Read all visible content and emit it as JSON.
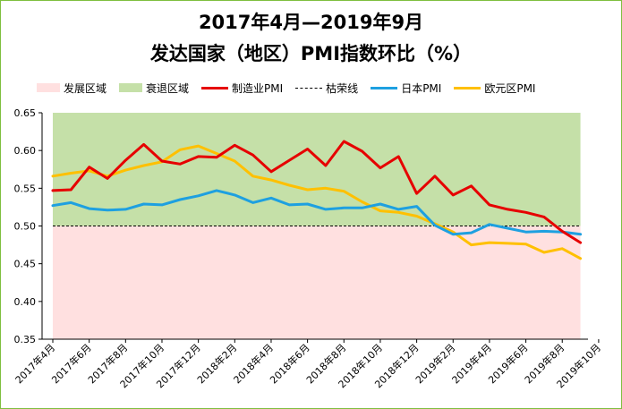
{
  "chart_data": {
    "type": "line",
    "title": "2017年4月—2019年9月",
    "subtitle": "发达国家（地区）PMI指数环比（%）",
    "xlabel": "",
    "ylabel": "",
    "ylim": [
      0.35,
      0.65
    ],
    "yticks": [
      "0.35",
      "0.40",
      "0.45",
      "0.50",
      "0.55",
      "0.60",
      "0.65"
    ],
    "grid": false,
    "legend_position": "top",
    "x_tick_labels": [
      "2017年4月",
      "2017年6月",
      "2017年8月",
      "2017年10月",
      "2017年12月",
      "2018年2月",
      "2018年4月",
      "2018年6月",
      "2018年8月",
      "2018年10月",
      "2018年12月",
      "2019年2月",
      "2019年4月",
      "2019年6月",
      "2019年8月",
      "2019年10月"
    ],
    "x": [
      "2017-04",
      "2017-05",
      "2017-06",
      "2017-07",
      "2017-08",
      "2017-09",
      "2017-10",
      "2017-11",
      "2017-12",
      "2018-01",
      "2018-02",
      "2018-03",
      "2018-04",
      "2018-05",
      "2018-06",
      "2018-07",
      "2018-08",
      "2018-09",
      "2018-10",
      "2018-11",
      "2018-12",
      "2019-01",
      "2019-02",
      "2019-03",
      "2019-04",
      "2019-05",
      "2019-06",
      "2019-07",
      "2019-08",
      "2019-09"
    ],
    "threshold": 0.5,
    "regions": [
      {
        "name": "发展区域",
        "color": "#ffe0e0",
        "range": [
          0.35,
          0.5
        ]
      },
      {
        "name": "衰退区域",
        "color": "#c5e0a8",
        "range": [
          0.5,
          0.65
        ]
      }
    ],
    "threshold_name": "枯荣线",
    "series": [
      {
        "name": "制造业PMI",
        "color": "#e60000",
        "values": [
          0.547,
          0.548,
          0.578,
          0.563,
          0.587,
          0.608,
          0.586,
          0.582,
          0.592,
          0.591,
          0.607,
          0.594,
          0.572,
          0.587,
          0.602,
          0.58,
          0.612,
          0.599,
          0.577,
          0.592,
          0.543,
          0.566,
          0.541,
          0.553,
          0.528,
          0.522,
          0.518,
          0.512,
          0.493,
          0.478
        ]
      },
      {
        "name": "日本PMI",
        "color": "#1ea0e0",
        "values": [
          0.527,
          0.531,
          0.523,
          0.521,
          0.522,
          0.529,
          0.528,
          0.535,
          0.54,
          0.547,
          0.541,
          0.531,
          0.537,
          0.528,
          0.529,
          0.522,
          0.524,
          0.524,
          0.529,
          0.522,
          0.526,
          0.501,
          0.489,
          0.491,
          0.502,
          0.497,
          0.492,
          0.493,
          0.492,
          0.489
        ]
      },
      {
        "name": "欧元区PMI",
        "color": "#ffc000",
        "values": [
          0.566,
          0.57,
          0.573,
          0.566,
          0.574,
          0.58,
          0.585,
          0.601,
          0.606,
          0.596,
          0.586,
          0.566,
          0.561,
          0.554,
          0.548,
          0.55,
          0.546,
          0.532,
          0.52,
          0.518,
          0.513,
          0.503,
          0.492,
          0.475,
          0.478,
          0.477,
          0.476,
          0.465,
          0.47,
          0.457
        ]
      }
    ]
  }
}
